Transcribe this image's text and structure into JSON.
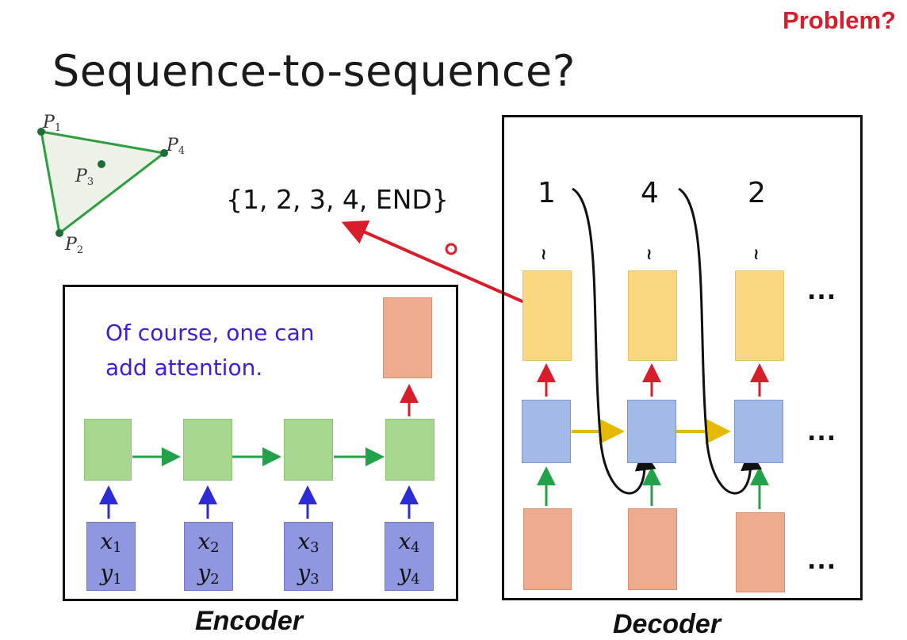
{
  "slide": {
    "title": "Sequence-to-sequence?",
    "problem_label": "Problem?",
    "output_sequence": "{1, 2, 3, 4, END}",
    "note_line1": "Of course, one can",
    "note_line2": "add attention.",
    "encoder_label": "Encoder",
    "decoder_label": "Decoder"
  },
  "points": [
    {
      "name": "P",
      "index": "1"
    },
    {
      "name": "P",
      "index": "2"
    },
    {
      "name": "P",
      "index": "3"
    },
    {
      "name": "P",
      "index": "4"
    }
  ],
  "encoder_inputs": [
    {
      "x": "x",
      "y": "y",
      "index": "1"
    },
    {
      "x": "x",
      "y": "y",
      "index": "2"
    },
    {
      "x": "x",
      "y": "y",
      "index": "3"
    },
    {
      "x": "x",
      "y": "y",
      "index": "4"
    }
  ],
  "decoder_outputs": [
    "1",
    "4",
    "2"
  ],
  "ellipsis": "...",
  "colors": {
    "encoder_hidden": "#a7d78f",
    "input_box": "#8e97e0",
    "decoder_hidden": "#a3b9e8",
    "decoder_output": "#f9d87f",
    "decoder_input": "#eeab8e",
    "accent_red": "#d81e2a",
    "note_blue": "#3b1fd8"
  }
}
